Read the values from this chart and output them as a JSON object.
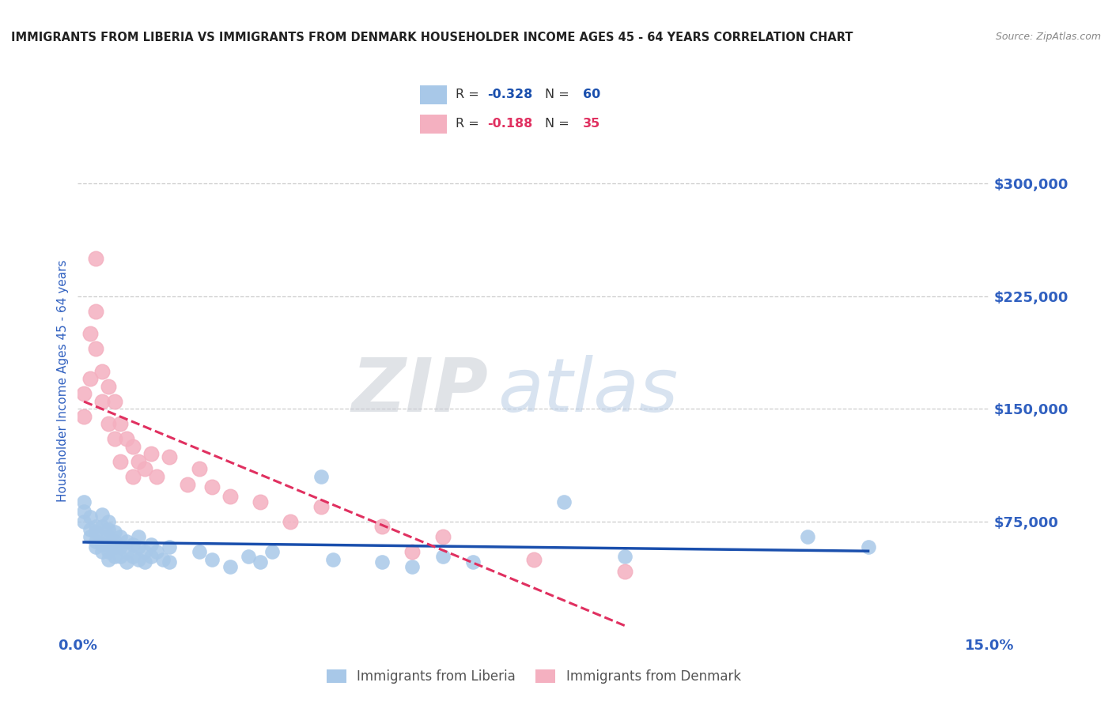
{
  "title": "IMMIGRANTS FROM LIBERIA VS IMMIGRANTS FROM DENMARK HOUSEHOLDER INCOME AGES 45 - 64 YEARS CORRELATION CHART",
  "source": "Source: ZipAtlas.com",
  "ylabel": "Householder Income Ages 45 - 64 years",
  "xlim": [
    0.0,
    0.15
  ],
  "ylim": [
    0,
    337500
  ],
  "yticks": [
    75000,
    150000,
    225000,
    300000
  ],
  "ytick_labels": [
    "$75,000",
    "$150,000",
    "$225,000",
    "$300,000"
  ],
  "xticks": [
    0.0,
    0.15
  ],
  "xtick_labels": [
    "0.0%",
    "15.0%"
  ],
  "liberia_color": "#a8c8e8",
  "denmark_color": "#f4b0c0",
  "liberia_line_color": "#1a4fad",
  "denmark_line_color": "#e03060",
  "legend_liberia_label": "Immigrants from Liberia",
  "legend_denmark_label": "Immigrants from Denmark",
  "R_liberia": -0.328,
  "N_liberia": 60,
  "R_denmark": -0.188,
  "N_denmark": 35,
  "watermark_zip": "ZIP",
  "watermark_atlas": "atlas",
  "background_color": "#ffffff",
  "grid_color": "#cccccc",
  "tick_label_color": "#3060c0",
  "title_color": "#222222",
  "liberia_x": [
    0.001,
    0.001,
    0.001,
    0.002,
    0.002,
    0.002,
    0.003,
    0.003,
    0.003,
    0.003,
    0.004,
    0.004,
    0.004,
    0.004,
    0.004,
    0.005,
    0.005,
    0.005,
    0.005,
    0.005,
    0.005,
    0.006,
    0.006,
    0.006,
    0.006,
    0.007,
    0.007,
    0.007,
    0.008,
    0.008,
    0.008,
    0.009,
    0.009,
    0.01,
    0.01,
    0.01,
    0.011,
    0.011,
    0.012,
    0.012,
    0.013,
    0.014,
    0.015,
    0.015,
    0.02,
    0.022,
    0.025,
    0.028,
    0.03,
    0.032,
    0.04,
    0.042,
    0.05,
    0.055,
    0.06,
    0.065,
    0.08,
    0.09,
    0.12,
    0.13
  ],
  "liberia_y": [
    88000,
    82000,
    75000,
    78000,
    70000,
    65000,
    72000,
    68000,
    62000,
    58000,
    80000,
    72000,
    65000,
    60000,
    55000,
    75000,
    70000,
    65000,
    60000,
    55000,
    50000,
    68000,
    62000,
    58000,
    52000,
    65000,
    58000,
    52000,
    62000,
    55000,
    48000,
    60000,
    52000,
    65000,
    58000,
    50000,
    55000,
    48000,
    60000,
    52000,
    55000,
    50000,
    58000,
    48000,
    55000,
    50000,
    45000,
    52000,
    48000,
    55000,
    105000,
    50000,
    48000,
    45000,
    52000,
    48000,
    88000,
    52000,
    65000,
    58000
  ],
  "denmark_x": [
    0.001,
    0.001,
    0.002,
    0.002,
    0.003,
    0.003,
    0.003,
    0.004,
    0.004,
    0.005,
    0.005,
    0.006,
    0.006,
    0.007,
    0.007,
    0.008,
    0.009,
    0.009,
    0.01,
    0.011,
    0.012,
    0.013,
    0.015,
    0.018,
    0.02,
    0.022,
    0.025,
    0.03,
    0.035,
    0.04,
    0.05,
    0.055,
    0.06,
    0.075,
    0.09
  ],
  "denmark_y": [
    160000,
    145000,
    200000,
    170000,
    250000,
    215000,
    190000,
    175000,
    155000,
    165000,
    140000,
    155000,
    130000,
    140000,
    115000,
    130000,
    125000,
    105000,
    115000,
    110000,
    120000,
    105000,
    118000,
    100000,
    110000,
    98000,
    92000,
    88000,
    75000,
    85000,
    72000,
    55000,
    65000,
    50000,
    42000
  ]
}
